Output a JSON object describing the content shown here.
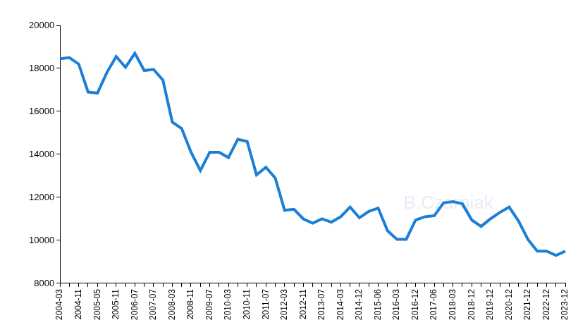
{
  "chart_data": {
    "type": "line",
    "categories": [
      "2004-03",
      null,
      "2004-11",
      null,
      "2005-05",
      null,
      "2005-11",
      null,
      "2006-07",
      null,
      "2007-07",
      null,
      "2008-03",
      null,
      "2008-11",
      null,
      "2009-07",
      null,
      "2010-03",
      null,
      "2010-11",
      null,
      "2011-07",
      null,
      "2012-03",
      null,
      "2012-11",
      null,
      "2013-07",
      null,
      "2014-03",
      null,
      "2014-12",
      null,
      "2015-06",
      null,
      "2016-03",
      null,
      "2016-12",
      null,
      "2017-06",
      null,
      "2018-03",
      null,
      "2018-12",
      null,
      "2019-12",
      null,
      "2020-12",
      null,
      "2021-12",
      null,
      "2022-12",
      null,
      "2023-12"
    ],
    "values": [
      18450,
      18500,
      18200,
      16900,
      16850,
      17800,
      18550,
      18050,
      18700,
      17900,
      17950,
      17450,
      15500,
      15200,
      14100,
      13250,
      14100,
      14100,
      13850,
      14700,
      14600,
      13050,
      13400,
      12900,
      11400,
      11450,
      11000,
      10800,
      11000,
      10850,
      11100,
      11550,
      11050,
      11350,
      11500,
      10450,
      10050,
      10050,
      10950,
      11100,
      11150,
      11750,
      11800,
      11700,
      10950,
      10650,
      11000,
      11300,
      11550,
      10900,
      10050,
      9500,
      9500,
      9300,
      9500
    ],
    "color": "#1b7fd6",
    "ylim": [
      8000,
      20000
    ],
    "yticks": [
      8000,
      10000,
      12000,
      14000,
      16000,
      18000,
      20000
    ],
    "grid": false,
    "annotations": [
      "B.Czarniak"
    ]
  }
}
